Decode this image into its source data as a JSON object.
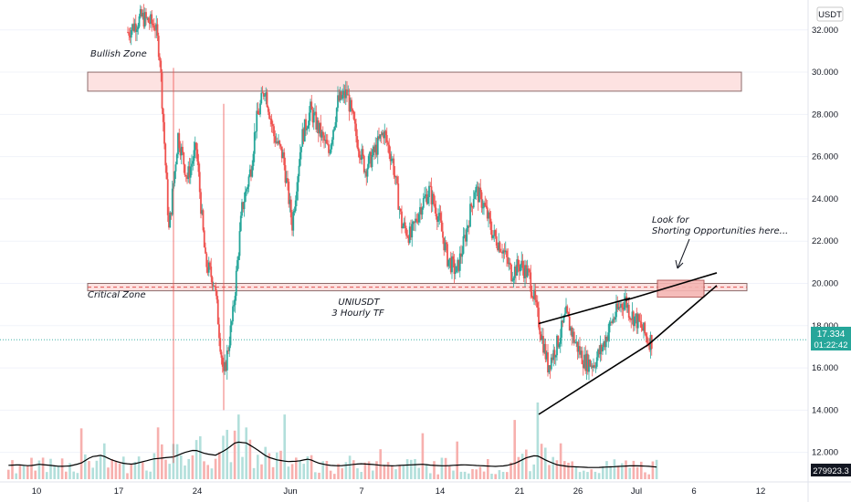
{
  "chart_data": {
    "type": "candlestick",
    "symbol": "UNIUSDT",
    "timeframe": "3 Hourly TF",
    "currency_badge": "USDT",
    "price_axis": {
      "ticks": [
        "12.000",
        "14.000",
        "16.000",
        "18.000",
        "20.000",
        "22.000",
        "24.000",
        "26.000",
        "28.000",
        "30.000",
        "32.000"
      ],
      "ylim": [
        10.3,
        33.2
      ]
    },
    "time_axis": {
      "ticks": [
        "10",
        "17",
        "24",
        "Jun",
        "7",
        "14",
        "21",
        "26",
        "Jul",
        "6",
        "12"
      ]
    },
    "last_price": "17.334",
    "countdown": "01:22:42",
    "volume_value": "279923.3",
    "colors": {
      "up": "#26a69a",
      "down": "#ef5350",
      "vol_up": "#b2dfdb",
      "vol_down": "#f7b0ae",
      "zone_fill": "#fde2e1",
      "zone_stroke": "#8c6b6b",
      "price_line": "#26a69a"
    },
    "zones": [
      {
        "label": "Bullish Zone",
        "top": 30.0,
        "bottom": 29.1
      },
      {
        "label": "Critical Zone",
        "top": 20.0,
        "bottom": 19.65
      }
    ],
    "annotations": {
      "center_title": "UNIUSDT",
      "center_subtitle": "3 Hourly TF",
      "note_line1": "Look for",
      "note_line2": "Shorting Opportunities here..."
    },
    "price_path": [
      [
        0,
        31.9
      ],
      [
        3,
        32.6
      ],
      [
        6,
        32.2
      ],
      [
        7,
        30.8
      ],
      [
        9,
        22.5
      ],
      [
        11,
        27.0
      ],
      [
        13,
        25.0
      ],
      [
        15,
        26.4
      ],
      [
        17,
        21.0
      ],
      [
        19,
        20.0
      ],
      [
        21,
        15.5
      ],
      [
        23,
        18.5
      ],
      [
        25,
        23.5
      ],
      [
        27,
        25.5
      ],
      [
        28,
        27.5
      ],
      [
        30,
        29.3
      ],
      [
        32,
        27.0
      ],
      [
        34,
        26.0
      ],
      [
        36,
        22.8
      ],
      [
        38,
        26.8
      ],
      [
        40,
        28.2
      ],
      [
        42,
        27.2
      ],
      [
        44,
        26.2
      ],
      [
        46,
        28.6
      ],
      [
        48,
        29.0
      ],
      [
        50,
        27.0
      ],
      [
        52,
        25.4
      ],
      [
        54,
        26.2
      ],
      [
        56,
        27.2
      ],
      [
        58,
        25.8
      ],
      [
        60,
        22.8
      ],
      [
        62,
        22.2
      ],
      [
        64,
        23.6
      ],
      [
        66,
        24.4
      ],
      [
        68,
        23.2
      ],
      [
        70,
        21.2
      ],
      [
        72,
        20.5
      ],
      [
        74,
        22.3
      ],
      [
        76,
        24.5
      ],
      [
        78,
        23.7
      ],
      [
        80,
        22.3
      ],
      [
        82,
        21.7
      ],
      [
        84,
        20.5
      ],
      [
        86,
        20.9
      ],
      [
        88,
        20.3
      ],
      [
        90,
        18.2
      ],
      [
        92,
        16.1
      ],
      [
        94,
        17.1
      ],
      [
        96,
        18.5
      ],
      [
        98,
        17.2
      ],
      [
        100,
        16.3
      ],
      [
        102,
        16.2
      ],
      [
        104,
        17.0
      ],
      [
        106,
        18.2
      ],
      [
        108,
        19.0
      ],
      [
        109,
        19.2
      ],
      [
        110,
        18.6
      ],
      [
        112,
        18.1
      ],
      [
        114,
        17.3
      ]
    ],
    "volume_series": {
      "ylim": [
        0,
        120000
      ],
      "values": [
        26000,
        27000,
        25000,
        28000,
        26000,
        24000,
        25000,
        30000,
        42000,
        45000,
        36000,
        30000,
        28000,
        33000,
        38000,
        40000,
        42000,
        50000,
        55000,
        48000,
        45000,
        55000,
        70000,
        68000,
        56000,
        42000,
        36000,
        33000,
        34000,
        38000,
        30000,
        26000,
        25000,
        27000,
        29000,
        28000,
        26000,
        25000,
        26000,
        27000,
        28000,
        26000,
        25000,
        26000,
        27000,
        26000,
        25000,
        24000,
        25000,
        30000,
        40000,
        45000,
        35000,
        27000,
        24000,
        23000,
        22000,
        22000,
        23000,
        24000,
        25000,
        25000,
        24000,
        22000
      ]
    },
    "wedge_lines": [
      {
        "from": [
          90,
          18.1
        ],
        "to": [
          110,
          19.3
        ]
      },
      {
        "from": [
          90,
          13.8
        ],
        "to": [
          114,
          17.1
        ]
      }
    ],
    "breakout_lines": [
      {
        "from": [
          109,
          19.2
        ],
        "to": [
          129,
          20.5
        ]
      },
      {
        "from": [
          114,
          17.1
        ],
        "to": [
          129,
          19.9
        ]
      }
    ]
  }
}
